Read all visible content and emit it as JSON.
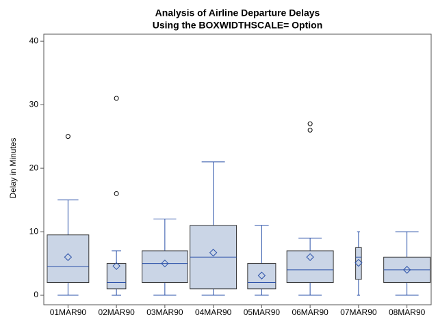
{
  "chart_data": {
    "type": "box",
    "title": "Analysis of Airline Departure Delays",
    "subtitle": "Using the BOXWIDTHSCALE= Option",
    "ylabel": "Delay in Minutes",
    "categories": [
      "01MAR90",
      "02MAR90",
      "03MAR90",
      "04MAR90",
      "05MAR90",
      "06MAR90",
      "07MAR90",
      "08MAR90"
    ],
    "boxes": [
      {
        "min": 0,
        "q1": 2,
        "median": 4.5,
        "q3": 9.5,
        "max": 15,
        "mean": 6,
        "outliers": [
          25
        ]
      },
      {
        "min": 0,
        "q1": 1,
        "median": 2,
        "q3": 5,
        "max": 7,
        "mean": 4.6,
        "outliers": [
          16,
          31
        ]
      },
      {
        "min": 0,
        "q1": 2,
        "median": 5,
        "q3": 7,
        "max": 12,
        "mean": 5,
        "outliers": []
      },
      {
        "min": 0,
        "q1": 1,
        "median": 6,
        "q3": 11,
        "max": 21,
        "mean": 6.7,
        "outliers": []
      },
      {
        "min": 0,
        "q1": 1,
        "median": 2,
        "q3": 5,
        "max": 11,
        "mean": 3.1,
        "outliers": []
      },
      {
        "min": 0,
        "q1": 2,
        "median": 4,
        "q3": 7,
        "max": 9,
        "mean": 6,
        "outliers": [
          26,
          27
        ]
      },
      {
        "min": 0,
        "q1": 2.5,
        "median": 6,
        "q3": 7.5,
        "max": 10,
        "mean": 5.1,
        "outliers": []
      },
      {
        "min": 0,
        "q1": 2,
        "median": 4,
        "q3": 6,
        "max": 10,
        "mean": 4,
        "outliers": []
      }
    ],
    "box_color": "#cad5e6",
    "line_color": "#2a50a8",
    "outlier_color": "#000000",
    "ylim": [
      -1.5,
      41.1
    ],
    "yticks": [
      0,
      10,
      20,
      30,
      40
    ]
  }
}
